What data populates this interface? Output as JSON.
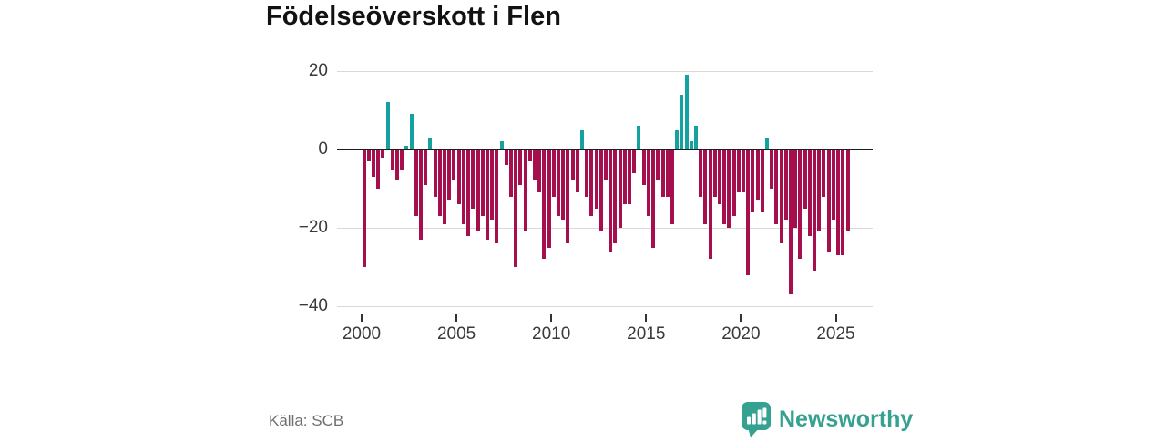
{
  "title": "Födelseöverskott i Flen",
  "source": "Källa: SCB",
  "brand": {
    "name": "Newsworthy",
    "logo_icon": "newsworthy-speech-bubble-chart-icon"
  },
  "colors": {
    "positive_bar": "#14a2a0",
    "negative_bar": "#a50f4d",
    "brand_teal": "#35a190",
    "grid": "#d9d9d9",
    "zero_axis": "#1c1c1c",
    "title_text": "#121212",
    "axis_text": "#3a3a3a",
    "source_text": "#6f6f6f"
  },
  "chart_data": {
    "type": "bar",
    "title": "Födelseöverskott i Flen",
    "xlabel": "",
    "ylabel": "",
    "ylim": [
      -40,
      20
    ],
    "grid": "horizontal",
    "legend": "none",
    "y_ticks": [
      20,
      0,
      -20,
      -40
    ],
    "y_tick_labels": [
      "20",
      "0",
      "−20",
      "−40"
    ],
    "x_tick_years": [
      2000,
      2005,
      2010,
      2015,
      2020,
      2025
    ],
    "x_tick_labels": [
      "2000",
      "2005",
      "2010",
      "2015",
      "2020",
      "2025"
    ],
    "period": "quarterly",
    "start": "2000-Q1",
    "end": "2025-Q3",
    "x": [
      "2000-Q1",
      "2000-Q2",
      "2000-Q3",
      "2000-Q4",
      "2001-Q1",
      "2001-Q2",
      "2001-Q3",
      "2001-Q4",
      "2002-Q1",
      "2002-Q2",
      "2002-Q3",
      "2002-Q4",
      "2003-Q1",
      "2003-Q2",
      "2003-Q3",
      "2003-Q4",
      "2004-Q1",
      "2004-Q2",
      "2004-Q3",
      "2004-Q4",
      "2005-Q1",
      "2005-Q2",
      "2005-Q3",
      "2005-Q4",
      "2006-Q1",
      "2006-Q2",
      "2006-Q3",
      "2006-Q4",
      "2007-Q1",
      "2007-Q2",
      "2007-Q3",
      "2007-Q4",
      "2008-Q1",
      "2008-Q2",
      "2008-Q3",
      "2008-Q4",
      "2009-Q1",
      "2009-Q2",
      "2009-Q3",
      "2009-Q4",
      "2010-Q1",
      "2010-Q2",
      "2010-Q3",
      "2010-Q4",
      "2011-Q1",
      "2011-Q2",
      "2011-Q3",
      "2011-Q4",
      "2012-Q1",
      "2012-Q2",
      "2012-Q3",
      "2012-Q4",
      "2013-Q1",
      "2013-Q2",
      "2013-Q3",
      "2013-Q4",
      "2014-Q1",
      "2014-Q2",
      "2014-Q3",
      "2014-Q4",
      "2015-Q1",
      "2015-Q2",
      "2015-Q3",
      "2015-Q4",
      "2016-Q1",
      "2016-Q2",
      "2016-Q3",
      "2016-Q4",
      "2017-Q1",
      "2017-Q2",
      "2017-Q3",
      "2017-Q4",
      "2018-Q1",
      "2018-Q2",
      "2018-Q3",
      "2018-Q4",
      "2019-Q1",
      "2019-Q2",
      "2019-Q3",
      "2019-Q4",
      "2020-Q1",
      "2020-Q2",
      "2020-Q3",
      "2020-Q4",
      "2021-Q1",
      "2021-Q2",
      "2021-Q3",
      "2021-Q4",
      "2022-Q1",
      "2022-Q2",
      "2022-Q3",
      "2022-Q4",
      "2023-Q1",
      "2023-Q2",
      "2023-Q3",
      "2023-Q4",
      "2024-Q1",
      "2024-Q2",
      "2024-Q3",
      "2024-Q4",
      "2025-Q1",
      "2025-Q2",
      "2025-Q3"
    ],
    "values": [
      -30,
      -3,
      -7,
      -10,
      -2,
      12,
      -5,
      -8,
      -5,
      1,
      9,
      -17,
      -23,
      -9,
      3,
      -12,
      -17,
      -19,
      -13,
      -8,
      -14,
      -19,
      -22,
      -15,
      -21,
      -17,
      -23,
      -18,
      -24,
      2,
      -4,
      -12,
      -30,
      -9,
      -21,
      -3,
      -8,
      -11,
      -28,
      -25,
      -12,
      -17,
      -18,
      -24,
      -8,
      -11,
      5,
      -12,
      -17,
      -15,
      -21,
      -8,
      -26,
      -24,
      -20,
      -14,
      -14,
      -6,
      6,
      -9,
      -17,
      -25,
      -8,
      -12,
      -12,
      -19,
      5,
      14,
      19,
      2,
      6,
      -12,
      -19,
      -28,
      -12,
      -14,
      -19,
      -20,
      -17,
      -11,
      -11,
      -32,
      -16,
      -13,
      -16,
      3,
      -10,
      -19,
      -24,
      -18,
      -37,
      -20,
      -28,
      -15,
      -22,
      -31,
      -21,
      -12,
      -26,
      -18,
      -27,
      -27,
      -21
    ]
  }
}
